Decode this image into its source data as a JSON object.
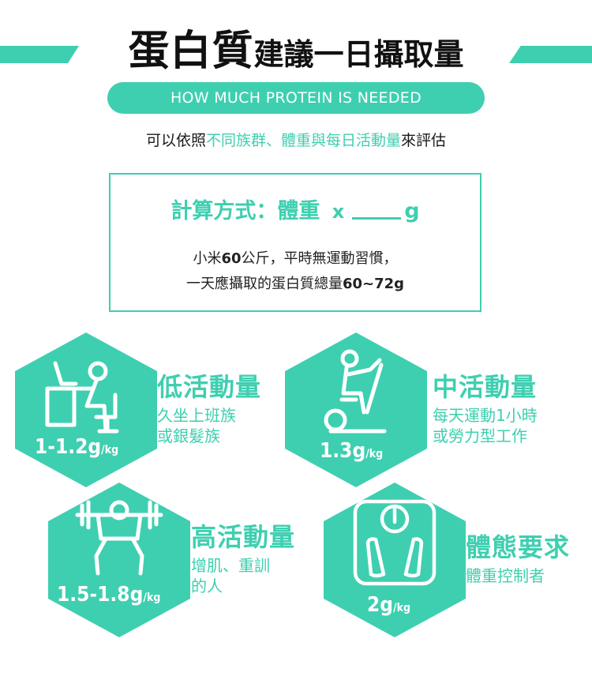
{
  "colors": {
    "accent": "#3ecfb0"
  },
  "header": {
    "title_main": "蛋白質",
    "title_rest": "建議一日攝取量",
    "subtitle": "HOW MUCH PROTEIN IS NEEDED"
  },
  "intro": {
    "prefix": "可以依照",
    "highlight": "不同族群、體重與每日活動量",
    "suffix": "來評估"
  },
  "formula": {
    "label": "計算方式：體重",
    "times": "x",
    "unit": "g",
    "example_line1_a": "小米",
    "example_line1_b": "60",
    "example_line1_c": "公斤，平時無運動習慣，",
    "example_line2_a": "一天應攝取的蛋白質總量",
    "example_line2_b": "60~72g"
  },
  "categories": [
    {
      "icon": "desk-worker-icon",
      "value": "1-1.2g",
      "unit": "/kg",
      "title": "低活動量",
      "desc1": "久坐上班族",
      "desc2": "或銀髮族"
    },
    {
      "icon": "exercise-bike-icon",
      "value": "1.3g",
      "unit": "/kg",
      "title": "中活動量",
      "desc1": "每天運動1小時",
      "desc2": "或勞力型工作"
    },
    {
      "icon": "weightlifter-icon",
      "value": "1.5-1.8g",
      "unit": "/kg",
      "title": "高活動量",
      "desc1": "增肌、重訓",
      "desc2": "的人"
    },
    {
      "icon": "bathroom-scale-icon",
      "value": "2g",
      "unit": "/kg",
      "title": "體態要求",
      "desc1": "體重控制者",
      "desc2": ""
    }
  ]
}
